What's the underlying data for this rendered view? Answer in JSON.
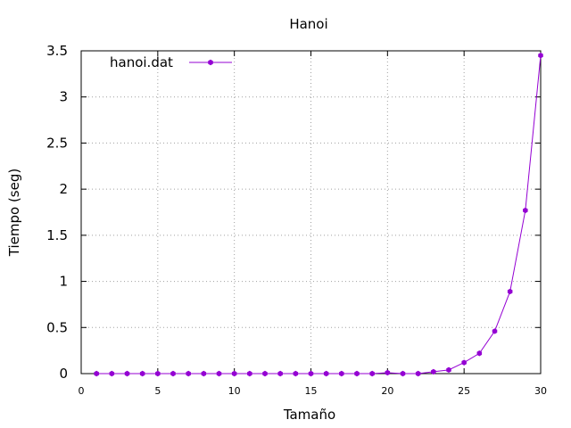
{
  "chart_data": {
    "type": "line",
    "title": "Hanoi",
    "xlabel": "Tamaño",
    "ylabel": "Tiempo (seg)",
    "xlim": [
      0,
      30
    ],
    "ylim": [
      0,
      3.5
    ],
    "x_ticks": [
      0,
      5,
      10,
      15,
      20,
      25,
      30
    ],
    "x_tick_labels": [
      "0",
      "5",
      "10",
      "15",
      "20",
      "25",
      "30"
    ],
    "y_ticks": [
      0,
      0.5,
      1,
      1.5,
      2,
      2.5,
      3,
      3.5
    ],
    "y_tick_labels": [
      "0",
      "0.5",
      "1",
      "1.5",
      "2",
      "2.5",
      "3",
      "3.5"
    ],
    "grid": true,
    "legend_position": "top-left",
    "series": [
      {
        "name": "hanoi.dat",
        "color": "#9400d3",
        "marker": "filled-hexagon",
        "x": [
          1,
          2,
          3,
          4,
          5,
          6,
          7,
          8,
          9,
          10,
          11,
          12,
          13,
          14,
          15,
          16,
          17,
          18,
          19,
          20,
          21,
          22,
          23,
          24,
          25,
          26,
          27,
          28,
          29,
          30
        ],
        "values": [
          0,
          0,
          0,
          0,
          0,
          0,
          0,
          0,
          0,
          0,
          0,
          0,
          0,
          0,
          0,
          0,
          0,
          0,
          0,
          0.01,
          0,
          0,
          0.02,
          0.04,
          0.12,
          0.22,
          0.46,
          0.89,
          1.77,
          3.45
        ]
      }
    ]
  }
}
